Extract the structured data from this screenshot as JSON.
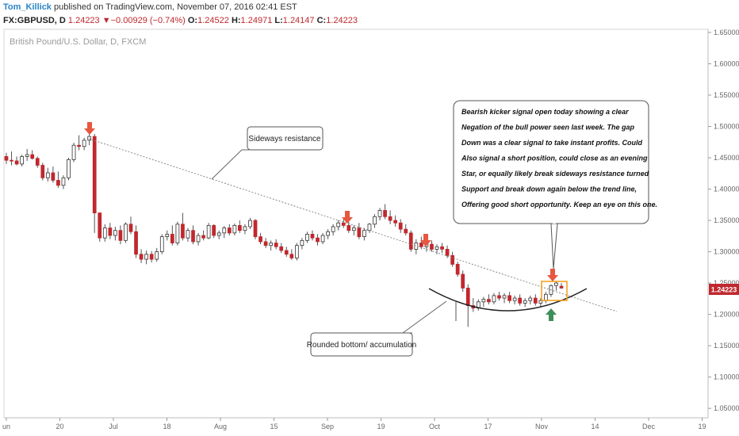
{
  "header": {
    "author": "Tom_Killick",
    "published_text": " published on TradingView.com, November 07, 2016 02:41 EST",
    "symbol": "FX:GBPUSD, D",
    "last": "1.24223",
    "change": "−0.00929 (−0.74%)",
    "o_label": "O:",
    "o_value": "1.24522",
    "h_label": "H:",
    "h_value": "1.24971",
    "l_label": "L:",
    "l_value": "1.24147",
    "c_label": "C:",
    "c_value": "1.24223"
  },
  "colors": {
    "up": "#ffffff",
    "down": "#c0282d",
    "wick": "#555555",
    "marker_red": "#e8573f",
    "marker_green": "#3e8e5a",
    "box": "#f39c12",
    "price_tag": "#c0282d"
  },
  "chart_data": {
    "type": "candlestick",
    "title": "British Pound/U.S. Dollar, D, FXCM",
    "ylim": [
      1.035,
      1.655
    ],
    "y_ticks": [
      "1.65000",
      "1.60000",
      "1.55000",
      "1.50000",
      "1.45000",
      "1.40000",
      "1.35000",
      "1.30000",
      "1.25000",
      "1.20000",
      "1.15000",
      "1.10000",
      "1.05000"
    ],
    "x_ticks": [
      "un",
      "20",
      "Jul",
      "18",
      "Aug",
      "15",
      "Sep",
      "19",
      "Oct",
      "17",
      "Nov",
      "14",
      "Dec",
      "19"
    ],
    "last_price_label": "1.24223",
    "ohlc": [
      [
        1.452,
        1.458,
        1.44,
        1.446
      ],
      [
        1.446,
        1.46,
        1.438,
        1.445
      ],
      [
        1.445,
        1.452,
        1.438,
        1.44
      ],
      [
        1.44,
        1.455,
        1.436,
        1.452
      ],
      [
        1.452,
        1.464,
        1.445,
        1.455
      ],
      [
        1.455,
        1.462,
        1.447,
        1.449
      ],
      [
        1.449,
        1.452,
        1.434,
        1.438
      ],
      [
        1.438,
        1.442,
        1.414,
        1.418
      ],
      [
        1.418,
        1.434,
        1.412,
        1.426
      ],
      [
        1.426,
        1.436,
        1.41,
        1.414
      ],
      [
        1.414,
        1.428,
        1.402,
        1.406
      ],
      [
        1.406,
        1.422,
        1.4,
        1.418
      ],
      [
        1.418,
        1.45,
        1.414,
        1.447
      ],
      [
        1.447,
        1.474,
        1.443,
        1.47
      ],
      [
        1.47,
        1.486,
        1.462,
        1.468
      ],
      [
        1.468,
        1.482,
        1.462,
        1.478
      ],
      [
        1.478,
        1.502,
        1.47,
        1.484
      ],
      [
        1.484,
        1.488,
        1.33,
        1.362
      ],
      [
        1.362,
        1.362,
        1.316,
        1.322
      ],
      [
        1.322,
        1.344,
        1.316,
        1.338
      ],
      [
        1.338,
        1.346,
        1.32,
        1.326
      ],
      [
        1.326,
        1.34,
        1.318,
        1.334
      ],
      [
        1.334,
        1.342,
        1.312,
        1.318
      ],
      [
        1.318,
        1.347,
        1.314,
        1.344
      ],
      [
        1.344,
        1.356,
        1.328,
        1.332
      ],
      [
        1.332,
        1.342,
        1.29,
        1.296
      ],
      [
        1.296,
        1.304,
        1.282,
        1.288
      ],
      [
        1.288,
        1.302,
        1.28,
        1.296
      ],
      [
        1.296,
        1.301,
        1.283,
        1.288
      ],
      [
        1.288,
        1.306,
        1.284,
        1.3
      ],
      [
        1.3,
        1.328,
        1.296,
        1.324
      ],
      [
        1.324,
        1.334,
        1.318,
        1.328
      ],
      [
        1.328,
        1.342,
        1.31,
        1.314
      ],
      [
        1.314,
        1.348,
        1.31,
        1.344
      ],
      [
        1.344,
        1.362,
        1.318,
        1.322
      ],
      [
        1.322,
        1.338,
        1.316,
        1.334
      ],
      [
        1.334,
        1.342,
        1.312,
        1.316
      ],
      [
        1.316,
        1.33,
        1.31,
        1.326
      ],
      [
        1.326,
        1.334,
        1.318,
        1.322
      ],
      [
        1.322,
        1.346,
        1.32,
        1.342
      ],
      [
        1.342,
        1.344,
        1.322,
        1.326
      ],
      [
        1.326,
        1.334,
        1.32,
        1.33
      ],
      [
        1.33,
        1.341,
        1.322,
        1.338
      ],
      [
        1.338,
        1.344,
        1.326,
        1.33
      ],
      [
        1.33,
        1.345,
        1.326,
        1.342
      ],
      [
        1.342,
        1.35,
        1.33,
        1.334
      ],
      [
        1.334,
        1.344,
        1.328,
        1.34
      ],
      [
        1.34,
        1.354,
        1.336,
        1.35
      ],
      [
        1.35,
        1.352,
        1.32,
        1.324
      ],
      [
        1.324,
        1.33,
        1.312,
        1.316
      ],
      [
        1.316,
        1.322,
        1.306,
        1.31
      ],
      [
        1.31,
        1.318,
        1.302,
        1.314
      ],
      [
        1.314,
        1.32,
        1.304,
        1.308
      ],
      [
        1.308,
        1.314,
        1.298,
        1.302
      ],
      [
        1.302,
        1.308,
        1.292,
        1.296
      ],
      [
        1.296,
        1.304,
        1.287,
        1.29
      ],
      [
        1.29,
        1.314,
        1.286,
        1.31
      ],
      [
        1.31,
        1.322,
        1.304,
        1.318
      ],
      [
        1.318,
        1.332,
        1.314,
        1.328
      ],
      [
        1.328,
        1.334,
        1.318,
        1.322
      ],
      [
        1.322,
        1.328,
        1.31,
        1.316
      ],
      [
        1.316,
        1.33,
        1.312,
        1.326
      ],
      [
        1.326,
        1.336,
        1.32,
        1.332
      ],
      [
        1.332,
        1.344,
        1.326,
        1.34
      ],
      [
        1.34,
        1.35,
        1.334,
        1.346
      ],
      [
        1.346,
        1.352,
        1.338,
        1.342
      ],
      [
        1.342,
        1.348,
        1.33,
        1.334
      ],
      [
        1.334,
        1.342,
        1.326,
        1.338
      ],
      [
        1.338,
        1.346,
        1.32,
        1.324
      ],
      [
        1.324,
        1.338,
        1.318,
        1.334
      ],
      [
        1.334,
        1.346,
        1.33,
        1.344
      ],
      [
        1.344,
        1.36,
        1.338,
        1.356
      ],
      [
        1.356,
        1.37,
        1.35,
        1.366
      ],
      [
        1.366,
        1.376,
        1.352,
        1.356
      ],
      [
        1.356,
        1.366,
        1.344,
        1.35
      ],
      [
        1.35,
        1.358,
        1.34,
        1.346
      ],
      [
        1.346,
        1.352,
        1.33,
        1.336
      ],
      [
        1.336,
        1.344,
        1.326,
        1.33
      ],
      [
        1.33,
        1.334,
        1.3,
        1.304
      ],
      [
        1.304,
        1.32,
        1.296,
        1.314
      ],
      [
        1.314,
        1.324,
        1.304,
        1.308
      ],
      [
        1.308,
        1.318,
        1.3,
        1.312
      ],
      [
        1.312,
        1.318,
        1.3,
        1.304
      ],
      [
        1.304,
        1.312,
        1.296,
        1.308
      ],
      [
        1.308,
        1.314,
        1.298,
        1.304
      ],
      [
        1.304,
        1.31,
        1.29,
        1.294
      ],
      [
        1.294,
        1.3,
        1.276,
        1.28
      ],
      [
        1.28,
        1.284,
        1.26,
        1.264
      ],
      [
        1.264,
        1.27,
        1.236,
        1.242
      ],
      [
        1.242,
        1.248,
        1.18,
        1.214
      ],
      [
        1.214,
        1.226,
        1.204,
        1.21
      ],
      [
        1.21,
        1.224,
        1.206,
        1.22
      ],
      [
        1.22,
        1.228,
        1.212,
        1.224
      ],
      [
        1.224,
        1.232,
        1.216,
        1.22
      ],
      [
        1.22,
        1.234,
        1.216,
        1.23
      ],
      [
        1.23,
        1.236,
        1.222,
        1.226
      ],
      [
        1.226,
        1.234,
        1.218,
        1.23
      ],
      [
        1.23,
        1.236,
        1.218,
        1.222
      ],
      [
        1.222,
        1.23,
        1.216,
        1.226
      ],
      [
        1.226,
        1.232,
        1.214,
        1.218
      ],
      [
        1.218,
        1.226,
        1.212,
        1.222
      ],
      [
        1.222,
        1.23,
        1.216,
        1.226
      ],
      [
        1.226,
        1.232,
        1.214,
        1.218
      ],
      [
        1.218,
        1.226,
        1.212,
        1.222
      ],
      [
        1.222,
        1.236,
        1.218,
        1.232
      ],
      [
        1.232,
        1.248,
        1.228,
        1.246
      ],
      [
        1.246,
        1.252,
        1.238,
        1.25
      ],
      [
        1.245,
        1.25,
        1.241,
        1.242
      ]
    ],
    "annotations": {
      "sideways": "Sideways resistance",
      "rounded": "Rounded bottom/ accumulation",
      "note_lines": [
        "Bearish kicker signal open today showing a clear",
        "Negation of the bull power seen last week. The gap",
        "Down was a clear signal to take instant profits. Could",
        "Also signal a short position, could close as an evening",
        "Star, or equally likely break sideways resistance turned",
        "Support and break down again below the trend line,",
        "Offering good short opportunity. Keep an eye on this one."
      ]
    }
  }
}
